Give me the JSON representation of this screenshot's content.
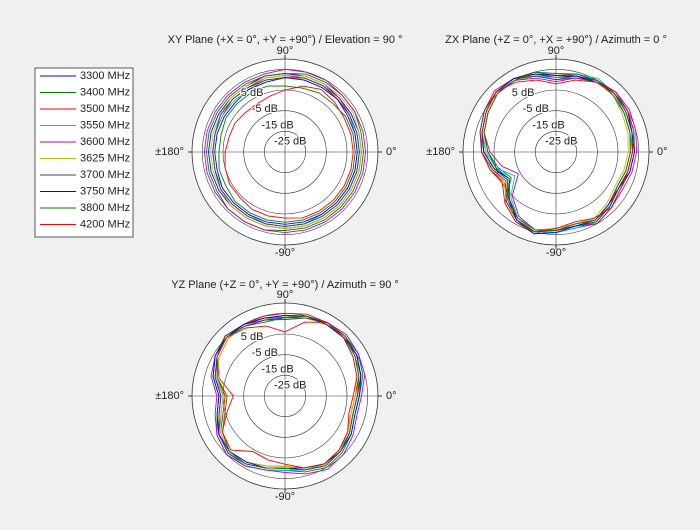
{
  "chart_data": [
    {
      "type": "polar",
      "title": "XY Plane (+X = 0°, +Y = +90°) / Elevation = 90 °",
      "legend": "left",
      "theta": [
        0,
        15,
        30,
        45,
        60,
        75,
        90,
        105,
        120,
        135,
        150,
        165,
        180,
        195,
        210,
        225,
        240,
        255,
        270,
        285,
        300,
        315,
        330,
        345
      ],
      "thetaticks": [
        {
          "value": 90,
          "label": "90°"
        },
        {
          "value": 0,
          "label": "0°"
        },
        {
          "value": -90,
          "label": "-90°"
        },
        {
          "value": 180,
          "label": "±180°"
        }
      ],
      "rlim": [
        -35,
        10
      ],
      "rticks": [
        {
          "value": 5,
          "label": "5 dB"
        },
        {
          "value": -5,
          "label": "-5 dB"
        },
        {
          "value": -15,
          "label": "-15 dB"
        },
        {
          "value": -25,
          "label": "-25 dB"
        }
      ],
      "series": [
        {
          "name": "3300 MHz",
          "color": "#0000ff",
          "values": [
            2,
            2,
            2,
            2,
            3,
            3,
            3,
            3,
            2,
            2,
            2,
            2,
            2,
            2,
            2,
            2,
            2,
            2,
            2,
            2,
            2,
            2,
            2,
            2
          ]
        },
        {
          "name": "3400 MHz",
          "color": "#008000",
          "values": [
            3,
            3,
            4,
            4,
            4,
            4,
            3,
            3,
            3,
            3,
            3,
            3,
            3,
            3,
            3,
            4,
            4,
            4,
            3,
            3,
            3,
            3,
            3,
            3
          ]
        },
        {
          "name": "3500 MHz",
          "color": "#ff0000",
          "values": [
            1,
            1,
            1,
            2,
            2,
            2,
            2,
            2,
            1,
            1,
            0,
            0,
            0,
            0,
            1,
            1,
            1,
            1,
            1,
            1,
            1,
            1,
            1,
            1
          ]
        },
        {
          "name": "3550 MHz",
          "color": "#00bfbf",
          "values": [
            0,
            0,
            1,
            1,
            1,
            1,
            1,
            1,
            0,
            0,
            0,
            0,
            0,
            0,
            0,
            0,
            0,
            1,
            1,
            1,
            0,
            0,
            0,
            0
          ]
        },
        {
          "name": "3600 MHz",
          "color": "#bf00bf",
          "values": [
            4,
            4,
            4,
            4,
            5,
            5,
            5,
            4,
            4,
            4,
            4,
            4,
            4,
            4,
            4,
            4,
            4,
            4,
            4,
            4,
            4,
            4,
            4,
            4
          ]
        },
        {
          "name": "3625 MHz",
          "color": "#bfbf00",
          "values": [
            2,
            2,
            3,
            3,
            3,
            3,
            2,
            2,
            2,
            2,
            1,
            1,
            1,
            1,
            1,
            2,
            2,
            2,
            2,
            2,
            2,
            2,
            2,
            2
          ]
        },
        {
          "name": "3700 MHz",
          "color": "#404040",
          "values": [
            1,
            1,
            1,
            1,
            2,
            2,
            1,
            1,
            1,
            1,
            1,
            0,
            0,
            0,
            1,
            1,
            1,
            1,
            1,
            1,
            1,
            1,
            1,
            1
          ]
        },
        {
          "name": "3750 MHz",
          "color": "#0000ff",
          "values": [
            0,
            0,
            0,
            1,
            1,
            1,
            1,
            0,
            0,
            -1,
            -1,
            -1,
            -1,
            -1,
            0,
            0,
            0,
            0,
            0,
            0,
            0,
            0,
            0,
            0
          ]
        },
        {
          "name": "3800 MHz",
          "color": "#008000",
          "values": [
            -1,
            -1,
            -1,
            -2,
            -2,
            -3,
            -3,
            -2,
            -2,
            -2,
            -2,
            -3,
            -3,
            -2,
            -2,
            -1,
            -1,
            -1,
            -1,
            -1,
            -1,
            -1,
            -1,
            -1
          ]
        },
        {
          "name": "4200 MHz",
          "color": "#ff0000",
          "values": [
            -2,
            -2,
            -2,
            -1,
            0,
            -2,
            -5,
            -7,
            -8,
            -8,
            -7,
            -7,
            -6,
            -5,
            -4,
            -4,
            -3,
            -3,
            -3,
            -2,
            -2,
            -2,
            -2,
            -2
          ]
        }
      ]
    },
    {
      "type": "polar",
      "title": "ZX Plane (+Z = 0°, +X = +90°) / Azimuth = 0 °",
      "theta": [
        0,
        15,
        30,
        45,
        60,
        75,
        90,
        105,
        120,
        135,
        150,
        165,
        180,
        195,
        210,
        225,
        240,
        255,
        270,
        285,
        300,
        315,
        330,
        345
      ],
      "thetaticks": [
        {
          "value": 90,
          "label": "90°"
        },
        {
          "value": 0,
          "label": "0°"
        },
        {
          "value": -90,
          "label": "-90°"
        },
        {
          "value": 180,
          "label": "±180°"
        }
      ],
      "rlim": [
        -35,
        10
      ],
      "rticks": [
        {
          "value": 5,
          "label": "5 dB"
        },
        {
          "value": -5,
          "label": "-5 dB"
        },
        {
          "value": -15,
          "label": "-15 dB"
        },
        {
          "value": -25,
          "label": "-25 dB"
        }
      ],
      "series": [
        {
          "color": "#0000ff",
          "values": [
            2,
            3,
            4,
            5,
            5,
            3,
            1,
            4,
            6,
            6,
            4,
            2,
            0,
            -4,
            -8,
            -2,
            3,
            5,
            3,
            2,
            4,
            2,
            0,
            1
          ]
        },
        {
          "color": "#008000",
          "values": [
            3,
            4,
            5,
            6,
            4,
            2,
            0,
            3,
            5,
            5,
            3,
            1,
            -2,
            -6,
            -10,
            0,
            4,
            6,
            4,
            3,
            5,
            3,
            1,
            2
          ]
        },
        {
          "color": "#ff0000",
          "values": [
            1,
            2,
            3,
            4,
            5,
            4,
            2,
            5,
            6,
            7,
            5,
            3,
            1,
            -2,
            -6,
            -3,
            2,
            4,
            2,
            1,
            3,
            1,
            -1,
            0
          ]
        },
        {
          "color": "#00bfbf",
          "values": [
            2,
            2,
            3,
            5,
            6,
            4,
            1,
            3,
            5,
            6,
            4,
            2,
            -1,
            -5,
            -12,
            -4,
            2,
            5,
            4,
            3,
            4,
            2,
            0,
            1
          ]
        },
        {
          "color": "#bf00bf",
          "values": [
            4,
            5,
            6,
            6,
            5,
            2,
            -1,
            2,
            5,
            5,
            3,
            1,
            -3,
            -8,
            -14,
            -5,
            1,
            4,
            3,
            2,
            5,
            3,
            2,
            3
          ]
        },
        {
          "color": "#bfbf00",
          "values": [
            0,
            1,
            2,
            4,
            4,
            3,
            2,
            4,
            5,
            5,
            3,
            1,
            -1,
            -3,
            -6,
            -1,
            2,
            4,
            2,
            1,
            2,
            0,
            -2,
            -1
          ]
        },
        {
          "color": "#404040",
          "values": [
            2,
            3,
            4,
            5,
            5,
            3,
            0,
            3,
            6,
            6,
            5,
            3,
            1,
            -3,
            -7,
            -1,
            3,
            5,
            3,
            2,
            4,
            2,
            0,
            1
          ]
        },
        {
          "color": "#0000ff",
          "values": [
            3,
            3,
            5,
            5,
            4,
            3,
            2,
            4,
            6,
            6,
            4,
            2,
            0,
            -4,
            -9,
            -3,
            3,
            6,
            4,
            2,
            3,
            1,
            0,
            2
          ]
        },
        {
          "color": "#008000",
          "values": [
            1,
            2,
            3,
            4,
            5,
            4,
            3,
            5,
            5,
            5,
            3,
            1,
            -2,
            -5,
            -9,
            -2,
            2,
            4,
            3,
            1,
            3,
            2,
            -1,
            0
          ]
        },
        {
          "color": "#ff0000",
          "values": [
            2,
            4,
            5,
            5,
            4,
            1,
            -2,
            1,
            4,
            6,
            4,
            2,
            1,
            -2,
            -5,
            0,
            4,
            5,
            2,
            0,
            2,
            3,
            1,
            1
          ]
        }
      ]
    },
    {
      "type": "polar",
      "title": "YZ Plane (+Z = 0°, +Y = +90°) / Azimuth = 90 °",
      "theta": [
        0,
        15,
        30,
        45,
        60,
        75,
        90,
        105,
        120,
        135,
        150,
        165,
        180,
        195,
        210,
        225,
        240,
        255,
        270,
        285,
        300,
        315,
        330,
        345
      ],
      "thetaticks": [
        {
          "value": 90,
          "label": "90°"
        },
        {
          "value": 0,
          "label": "0°"
        },
        {
          "value": -90,
          "label": "-90°"
        },
        {
          "value": 180,
          "label": "±180°"
        }
      ],
      "rlim": [
        -35,
        10
      ],
      "rticks": [
        {
          "value": 5,
          "label": "5 dB"
        },
        {
          "value": -5,
          "label": "-5 dB"
        },
        {
          "value": -15,
          "label": "-15 dB"
        },
        {
          "value": -25,
          "label": "-25 dB"
        }
      ],
      "series": [
        {
          "color": "#0000ff",
          "values": [
            0,
            3,
            5,
            6,
            6,
            5,
            4,
            4,
            5,
            5,
            3,
            0,
            -4,
            -2,
            2,
            4,
            3,
            1,
            0,
            2,
            4,
            3,
            1,
            -1
          ]
        },
        {
          "color": "#008000",
          "values": [
            1,
            4,
            6,
            6,
            5,
            4,
            3,
            4,
            5,
            6,
            4,
            1,
            -3,
            -1,
            3,
            5,
            4,
            2,
            1,
            3,
            5,
            4,
            2,
            0
          ]
        },
        {
          "color": "#ff0000",
          "values": [
            -1,
            2,
            4,
            5,
            6,
            6,
            5,
            5,
            5,
            4,
            2,
            -1,
            -6,
            -4,
            1,
            3,
            2,
            0,
            -1,
            1,
            3,
            2,
            0,
            -2
          ]
        },
        {
          "color": "#00bfbf",
          "values": [
            0,
            3,
            4,
            5,
            5,
            5,
            4,
            3,
            4,
            5,
            3,
            0,
            -5,
            -3,
            2,
            4,
            4,
            2,
            1,
            2,
            3,
            2,
            1,
            -1
          ]
        },
        {
          "color": "#bf00bf",
          "values": [
            2,
            5,
            6,
            7,
            6,
            5,
            3,
            3,
            4,
            5,
            4,
            2,
            -2,
            0,
            3,
            5,
            4,
            2,
            2,
            4,
            6,
            5,
            3,
            1
          ]
        },
        {
          "color": "#bfbf00",
          "values": [
            -1,
            1,
            3,
            5,
            5,
            4,
            4,
            4,
            5,
            4,
            2,
            -1,
            -5,
            -3,
            1,
            3,
            2,
            0,
            -1,
            1,
            3,
            2,
            0,
            -2
          ]
        },
        {
          "color": "#404040",
          "values": [
            0,
            3,
            5,
            6,
            6,
            4,
            2,
            3,
            5,
            6,
            3,
            0,
            -4,
            -2,
            2,
            4,
            3,
            1,
            0,
            2,
            4,
            3,
            1,
            -1
          ]
        },
        {
          "color": "#0000ff",
          "values": [
            1,
            3,
            5,
            5,
            5,
            5,
            4,
            4,
            5,
            5,
            4,
            1,
            -3,
            -1,
            2,
            3,
            2,
            1,
            0,
            1,
            3,
            3,
            2,
            0
          ]
        },
        {
          "color": "#008000",
          "values": [
            0,
            2,
            4,
            6,
            6,
            5,
            3,
            2,
            4,
            5,
            3,
            -1,
            -7,
            -5,
            0,
            3,
            3,
            1,
            0,
            2,
            4,
            3,
            1,
            -1
          ]
        },
        {
          "color": "#ff0000",
          "values": [
            -2,
            1,
            3,
            5,
            6,
            2,
            -4,
            0,
            3,
            5,
            3,
            -2,
            -10,
            -6,
            0,
            2,
            -4,
            -3,
            -2,
            1,
            3,
            2,
            0,
            -3
          ]
        }
      ]
    }
  ]
}
